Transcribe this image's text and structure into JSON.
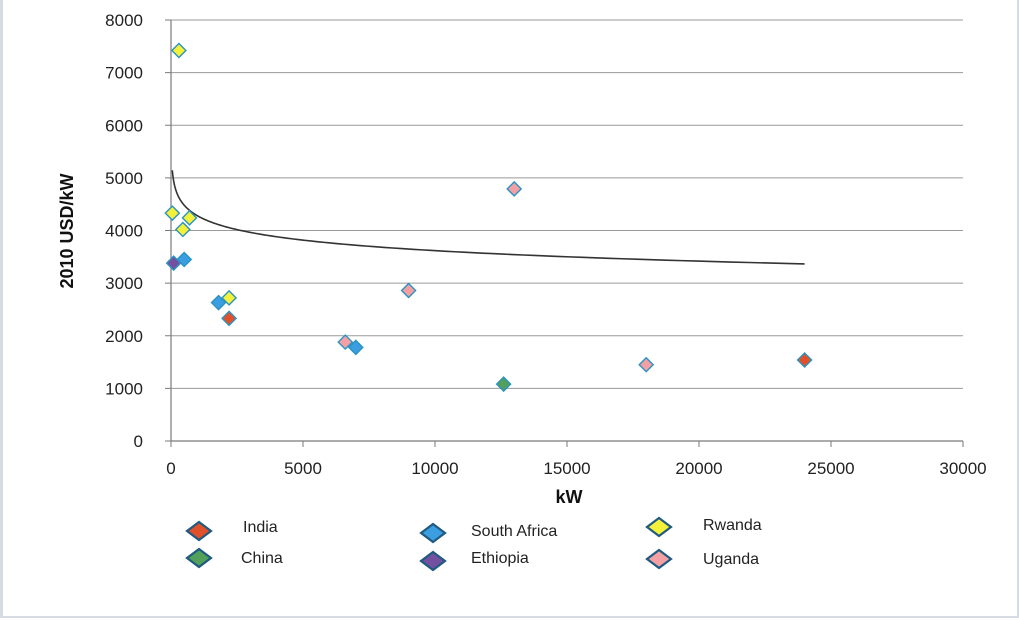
{
  "chart_data": {
    "type": "scatter",
    "title": "",
    "xlabel": "kW",
    "ylabel": "2010 USD/kW",
    "xlim": [
      0,
      30000
    ],
    "ylim": [
      0,
      8000
    ],
    "x_ticks": [
      "0",
      "5000",
      "10000",
      "15000",
      "20000",
      "25000",
      "30000"
    ],
    "y_ticks": [
      "0",
      "1000",
      "2000",
      "3000",
      "4000",
      "5000",
      "6000",
      "7000",
      "8000"
    ],
    "grid": "horizontal",
    "legend_position": "bottom",
    "series": [
      {
        "name": "India",
        "color": "#e0502a",
        "points": [
          {
            "x": 2200,
            "y": 2330
          },
          {
            "x": 24000,
            "y": 1540
          }
        ]
      },
      {
        "name": "China",
        "color": "#52a05a",
        "points": [
          {
            "x": 12600,
            "y": 1080
          }
        ]
      },
      {
        "name": "South Africa",
        "color": "#3a9ee0",
        "points": [
          {
            "x": 500,
            "y": 3450
          },
          {
            "x": 1800,
            "y": 2630
          },
          {
            "x": 7000,
            "y": 1780
          }
        ]
      },
      {
        "name": "Ethiopia",
        "color": "#7450a0",
        "points": [
          {
            "x": 100,
            "y": 3380
          }
        ]
      },
      {
        "name": "Rwanda",
        "color": "#f3f13a",
        "points": [
          {
            "x": 300,
            "y": 7420
          },
          {
            "x": 50,
            "y": 4330
          },
          {
            "x": 700,
            "y": 4240
          },
          {
            "x": 450,
            "y": 4020
          },
          {
            "x": 2200,
            "y": 2720
          }
        ]
      },
      {
        "name": "Uganda",
        "color": "#f2a0a3",
        "points": [
          {
            "x": 13000,
            "y": 4790
          },
          {
            "x": 9000,
            "y": 2860
          },
          {
            "x": 6600,
            "y": 1880
          },
          {
            "x": 18000,
            "y": 1450
          }
        ]
      }
    ],
    "trendline": {
      "type": "logarithmic",
      "x_range": [
        50,
        24000
      ],
      "a": 6270,
      "b": -288
    }
  }
}
